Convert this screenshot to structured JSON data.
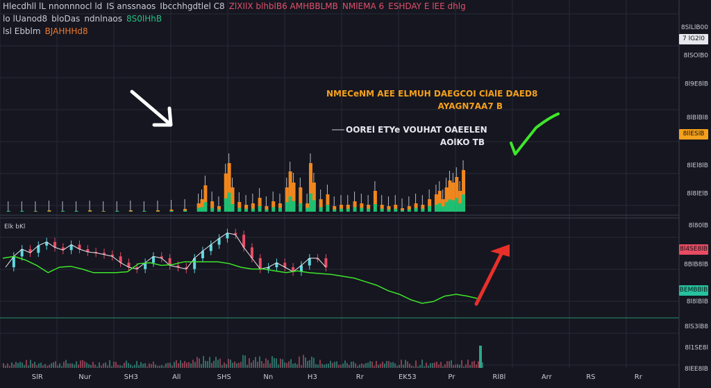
{
  "header": {
    "line1": [
      {
        "text": "Hlecdhll lL nnonnnocl ld",
        "color": "white"
      },
      {
        "text": "IS anssnaos",
        "color": "white"
      },
      {
        "text": "Ibcchhgdtlel C8",
        "color": "white"
      },
      {
        "text": "ZlXIlX blhblB6 AMHBBLMB",
        "color": "red"
      },
      {
        "text": "NMlEMA 6",
        "color": "red"
      },
      {
        "text": "ESHDAY E lEE dhlg",
        "color": "red"
      }
    ],
    "line2": [
      {
        "text": "lo lUanod8",
        "color": "white"
      },
      {
        "text": "bloDas",
        "color": "white"
      },
      {
        "text": "ndnlnaos",
        "color": "white"
      },
      {
        "text": "8S0lHhB",
        "color": "green"
      }
    ],
    "line3": [
      {
        "text": "lsl Ebblm",
        "color": "white"
      },
      {
        "text": "BJAHHHd8",
        "color": "orange"
      }
    ]
  },
  "annotations": {
    "orange_line1": "NMECeNM AEE ELMUH DAEGCOI ClAlE DAED8",
    "orange_line2": "AYAGN7AA7 B",
    "white_line1": "OOREl ETYe VOUHAT OAEELEN",
    "white_line2": "AOlKO TB",
    "lower_label": "Elk bKl"
  },
  "price_axis": {
    "labels": [
      "8SlLlB00",
      "8lSOlB0",
      "8l9E8lB",
      "8lBlBl8",
      "8lEl8lB",
      "8l8lElB",
      "8l80lB",
      "8BlB8lB",
      "8l8lBlB",
      "8lS3lB8",
      "8l1SE8l",
      "8lEE8lB"
    ],
    "label_values": [
      0.965,
      0.885,
      0.805,
      0.71,
      0.575,
      0.495,
      0.405,
      0.295,
      0.19,
      0.12,
      0.06,
      0.0
    ],
    "price_marker": "7 lG2l0",
    "price_marker_value": 0.93,
    "orange_tag": "8llESlB",
    "orange_tag_value": 0.66,
    "red_tag": "8l4SE8lB",
    "red_tag_value": 0.335,
    "green_tag": "BEMBBlB",
    "green_tag_value": 0.22
  },
  "time_axis": {
    "labels": [
      "SlR",
      "Nur",
      "SH3",
      "All",
      "SHS",
      "Nn",
      "H3",
      "Rr",
      "EK53",
      "Pr",
      "Rl8l",
      "Arr",
      "RS",
      "Rr"
    ],
    "positions": [
      0.055,
      0.125,
      0.193,
      0.26,
      0.33,
      0.395,
      0.46,
      0.53,
      0.6,
      0.665,
      0.735,
      0.805,
      0.87,
      0.94
    ]
  },
  "colors": {
    "background": "#151620",
    "grid": "#262a36",
    "up": "#1fbf72",
    "down": "#e84b63",
    "orange": "#f0861e",
    "line_green": "#3ee62a",
    "arrow_red": "#e8302a",
    "cyan": "#5fd8e0",
    "accent_orange": "#f5a01c"
  },
  "icons": [
    "arrow-down-right-icon",
    "checkmark-icon",
    "arrow-up-right-icon"
  ],
  "chart_data": {
    "type": "bar",
    "title": "",
    "grid": true,
    "volume_panel": {
      "x": [
        0.01,
        0.03,
        0.05,
        0.07,
        0.09,
        0.11,
        0.13,
        0.15,
        0.17,
        0.19,
        0.21,
        0.23,
        0.25,
        0.27,
        0.29,
        0.295,
        0.3,
        0.31,
        0.32,
        0.33,
        0.335,
        0.34,
        0.35,
        0.36,
        0.37,
        0.38,
        0.39,
        0.4,
        0.41,
        0.42,
        0.425,
        0.43,
        0.44,
        0.45,
        0.455,
        0.46,
        0.47,
        0.48,
        0.49,
        0.5,
        0.51,
        0.52,
        0.53,
        0.54,
        0.55,
        0.56,
        0.57,
        0.58,
        0.59,
        0.6,
        0.61,
        0.62,
        0.63,
        0.64,
        0.645,
        0.65,
        0.655,
        0.66,
        0.665,
        0.67,
        0.675,
        0.68
      ],
      "series": [
        {
          "name": "up",
          "values": [
            1,
            1,
            1,
            2,
            1,
            1,
            2,
            1,
            1,
            2,
            1,
            2,
            3,
            4,
            12,
            18,
            38,
            15,
            8,
            55,
            70,
            35,
            14,
            10,
            12,
            20,
            8,
            15,
            12,
            35,
            58,
            42,
            35,
            12,
            70,
            42,
            18,
            25,
            8,
            10,
            10,
            15,
            12,
            10,
            30,
            10,
            8,
            10,
            5,
            8,
            12,
            10,
            18,
            25,
            30,
            18,
            35,
            45,
            42,
            50,
            30,
            60
          ]
        },
        {
          "name": "down",
          "values": [
            2,
            2,
            1,
            1,
            2,
            2,
            1,
            1,
            2,
            1,
            2,
            1,
            2,
            3,
            10,
            12,
            25,
            10,
            6,
            35,
            50,
            20,
            10,
            8,
            8,
            15,
            6,
            12,
            10,
            25,
            40,
            28,
            22,
            10,
            48,
            30,
            12,
            18,
            6,
            8,
            8,
            12,
            10,
            8,
            20,
            8,
            6,
            8,
            4,
            6,
            10,
            8,
            15,
            18,
            22,
            14,
            25,
            32,
            30,
            36,
            22,
            45
          ]
        }
      ]
    },
    "price_panel": {
      "price": [
        0.5,
        0.62,
        0.7,
        0.66,
        0.74,
        0.78,
        0.72,
        0.69,
        0.75,
        0.7,
        0.67,
        0.66,
        0.64,
        0.62,
        0.55,
        0.5,
        0.48,
        0.55,
        0.62,
        0.6,
        0.52,
        0.5,
        0.48,
        0.6,
        0.68,
        0.75,
        0.82,
        0.88,
        0.86,
        0.72,
        0.6,
        0.48,
        0.5,
        0.55,
        0.5,
        0.45,
        0.52,
        0.6,
        0.6,
        0.5
      ],
      "ma": [
        0.6,
        0.62,
        0.58,
        0.52,
        0.44,
        0.5,
        0.51,
        0.48,
        0.44,
        0.44,
        0.44,
        0.45,
        0.54,
        0.55,
        0.52,
        0.53,
        0.56,
        0.56,
        0.56,
        0.56,
        0.54,
        0.5,
        0.48,
        0.48,
        0.46,
        0.44,
        0.46,
        0.44,
        0.43,
        0.42,
        0.4,
        0.38,
        0.34,
        0.3,
        0.24,
        0.2,
        0.14,
        0.1,
        0.12,
        0.18,
        0.2,
        0.18,
        0.15
      ]
    }
  }
}
